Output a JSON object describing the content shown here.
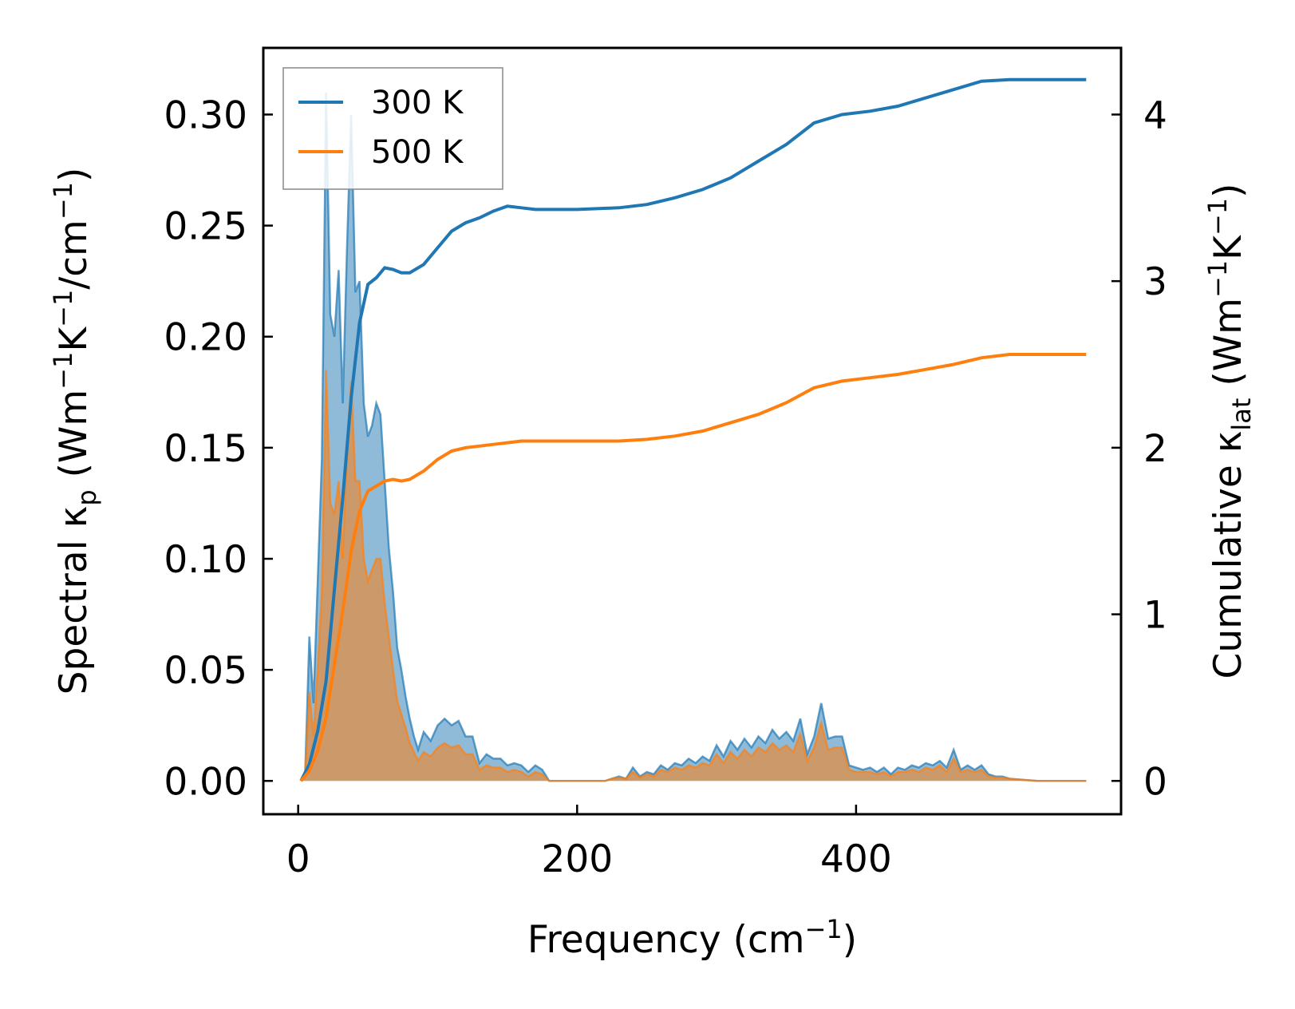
{
  "chart_data": {
    "type": "line",
    "xlabel": {
      "main": "Frequency (cm",
      "sup": "−1",
      "tail": ")"
    },
    "ylabel_left": {
      "pre": "Spectral κ",
      "sub": "p",
      "mid1": " (Wm",
      "sup1": "−1",
      "mid2": "K",
      "sup2": "−1",
      "mid3": "/cm",
      "sup3": "−1",
      "tail": ")"
    },
    "ylabel_right": {
      "pre": "Cumulative κ",
      "sub": "lat",
      "mid1": " (Wm",
      "sup1": "−1",
      "mid2": "K",
      "sup2": "−1",
      "tail": ")"
    },
    "xlim": [
      -25,
      590
    ],
    "ylim_left": [
      -0.015,
      0.33
    ],
    "ylim_right": [
      -0.2,
      4.4
    ],
    "xticks": [
      0,
      200,
      400
    ],
    "xtick_labels": [
      "0",
      "200",
      "400"
    ],
    "yticks_left": [
      0,
      0.05,
      0.1,
      0.15,
      0.2,
      0.25,
      0.3
    ],
    "ytick_labels_left": [
      "0.00",
      "0.05",
      "0.10",
      "0.15",
      "0.20",
      "0.25",
      "0.30"
    ],
    "yticks_right": [
      0,
      1,
      2,
      3,
      4
    ],
    "ytick_labels_right": [
      "0",
      "1",
      "2",
      "3",
      "4"
    ],
    "legend": {
      "position": "top-left",
      "entries": [
        "300 K",
        "500 K"
      ]
    },
    "colors": {
      "s300": "#1f77b4",
      "s500": "#ff7f0e",
      "fill300": "#1f77b4",
      "fill500": "#ff7f0e"
    },
    "series": [
      {
        "name": "300 K",
        "spectral": {
          "x": [
            2,
            5,
            8,
            11,
            14,
            17,
            20,
            23,
            26,
            29,
            32,
            35,
            38,
            41,
            44,
            47,
            50,
            53,
            56,
            59,
            62,
            65,
            68,
            71,
            74,
            77,
            80,
            83,
            86,
            90,
            95,
            100,
            105,
            110,
            115,
            120,
            125,
            130,
            135,
            140,
            145,
            150,
            155,
            160,
            165,
            170,
            175,
            180,
            190,
            200,
            210,
            220,
            225,
            230,
            235,
            240,
            245,
            250,
            255,
            260,
            265,
            270,
            275,
            280,
            285,
            290,
            295,
            300,
            305,
            310,
            315,
            320,
            325,
            330,
            335,
            340,
            345,
            350,
            355,
            360,
            365,
            370,
            375,
            380,
            385,
            390,
            395,
            400,
            405,
            410,
            415,
            420,
            425,
            430,
            435,
            440,
            445,
            450,
            455,
            460,
            465,
            470,
            475,
            480,
            485,
            490,
            495,
            500,
            505,
            510,
            520,
            530,
            540,
            550,
            565
          ],
          "y": [
            0,
            0.003,
            0.065,
            0.035,
            0.09,
            0.145,
            0.31,
            0.21,
            0.2,
            0.23,
            0.17,
            0.24,
            0.3,
            0.22,
            0.225,
            0.17,
            0.155,
            0.16,
            0.17,
            0.165,
            0.135,
            0.105,
            0.085,
            0.06,
            0.05,
            0.038,
            0.028,
            0.02,
            0.014,
            0.022,
            0.018,
            0.025,
            0.028,
            0.025,
            0.027,
            0.02,
            0.02,
            0.008,
            0.012,
            0.01,
            0.01,
            0.007,
            0.008,
            0.007,
            0.004,
            0.007,
            0.005,
            0,
            0,
            0,
            0,
            0,
            0.001,
            0.002,
            0.001,
            0.006,
            0.002,
            0.004,
            0.003,
            0.007,
            0.005,
            0.008,
            0.007,
            0.01,
            0.008,
            0.011,
            0.009,
            0.016,
            0.011,
            0.018,
            0.014,
            0.019,
            0.015,
            0.02,
            0.017,
            0.023,
            0.019,
            0.022,
            0.018,
            0.028,
            0.012,
            0.02,
            0.035,
            0.019,
            0.02,
            0.02,
            0.007,
            0.006,
            0.005,
            0.006,
            0.004,
            0.006,
            0.003,
            0.006,
            0.005,
            0.007,
            0.006,
            0.008,
            0.007,
            0.009,
            0.006,
            0.014,
            0.005,
            0.007,
            0.005,
            0.007,
            0.003,
            0.002,
            0.002,
            0.001,
            0.0005,
            0,
            0,
            0,
            0
          ]
        },
        "cumulative": {
          "x": [
            2,
            8,
            14,
            20,
            26,
            32,
            38,
            44,
            50,
            56,
            62,
            68,
            74,
            80,
            90,
            100,
            110,
            120,
            130,
            140,
            150,
            160,
            170,
            180,
            200,
            230,
            250,
            270,
            290,
            310,
            330,
            350,
            370,
            390,
            410,
            430,
            450,
            470,
            490,
            510,
            540,
            565
          ],
          "y": [
            0,
            0.1,
            0.3,
            0.6,
            1.15,
            1.7,
            2.3,
            2.75,
            2.98,
            3.02,
            3.08,
            3.07,
            3.05,
            3.05,
            3.1,
            3.2,
            3.3,
            3.35,
            3.38,
            3.42,
            3.45,
            3.44,
            3.43,
            3.43,
            3.43,
            3.44,
            3.46,
            3.5,
            3.55,
            3.62,
            3.72,
            3.82,
            3.95,
            4.0,
            4.02,
            4.05,
            4.1,
            4.15,
            4.2,
            4.21,
            4.21,
            4.21
          ]
        }
      },
      {
        "name": "500 K",
        "spectral": {
          "x": [
            2,
            5,
            8,
            11,
            14,
            17,
            20,
            23,
            26,
            29,
            32,
            35,
            38,
            41,
            44,
            47,
            50,
            53,
            56,
            59,
            62,
            65,
            68,
            71,
            74,
            77,
            80,
            83,
            86,
            90,
            95,
            100,
            105,
            110,
            115,
            120,
            125,
            130,
            135,
            140,
            145,
            150,
            155,
            160,
            165,
            170,
            175,
            180,
            190,
            200,
            210,
            220,
            225,
            230,
            235,
            240,
            245,
            250,
            255,
            260,
            265,
            270,
            275,
            280,
            285,
            290,
            295,
            300,
            305,
            310,
            315,
            320,
            325,
            330,
            335,
            340,
            345,
            350,
            355,
            360,
            365,
            370,
            375,
            380,
            385,
            390,
            395,
            400,
            405,
            410,
            415,
            420,
            425,
            430,
            435,
            440,
            445,
            450,
            455,
            460,
            465,
            470,
            475,
            480,
            485,
            490,
            495,
            500,
            505,
            510,
            520,
            530,
            540,
            550,
            565
          ],
          "y": [
            0,
            0.002,
            0.04,
            0.02,
            0.05,
            0.085,
            0.185,
            0.125,
            0.12,
            0.135,
            0.1,
            0.15,
            0.18,
            0.135,
            0.135,
            0.1,
            0.09,
            0.095,
            0.1,
            0.1,
            0.08,
            0.065,
            0.05,
            0.036,
            0.03,
            0.024,
            0.017,
            0.013,
            0.009,
            0.013,
            0.011,
            0.015,
            0.017,
            0.015,
            0.016,
            0.012,
            0.012,
            0.005,
            0.007,
            0.006,
            0.006,
            0.004,
            0.005,
            0.004,
            0.002,
            0.004,
            0.003,
            0,
            0,
            0,
            0,
            0,
            0.001,
            0.0015,
            0.001,
            0.004,
            0.0015,
            0.003,
            0.002,
            0.005,
            0.004,
            0.006,
            0.005,
            0.007,
            0.006,
            0.008,
            0.007,
            0.012,
            0.008,
            0.013,
            0.01,
            0.014,
            0.011,
            0.015,
            0.013,
            0.017,
            0.014,
            0.016,
            0.013,
            0.021,
            0.009,
            0.015,
            0.026,
            0.014,
            0.015,
            0.015,
            0.005,
            0.004,
            0.004,
            0.004,
            0.003,
            0.004,
            0.002,
            0.004,
            0.004,
            0.005,
            0.004,
            0.006,
            0.005,
            0.007,
            0.004,
            0.01,
            0.004,
            0.005,
            0.004,
            0.005,
            0.002,
            0.0015,
            0.0015,
            0.001,
            0.0004,
            0,
            0,
            0,
            0
          ]
        },
        "cumulative": {
          "x": [
            2,
            8,
            14,
            20,
            26,
            32,
            38,
            44,
            50,
            56,
            62,
            68,
            74,
            80,
            90,
            100,
            110,
            120,
            130,
            140,
            150,
            160,
            170,
            180,
            200,
            230,
            250,
            270,
            290,
            310,
            330,
            350,
            370,
            390,
            410,
            430,
            450,
            470,
            490,
            510,
            540,
            565
          ],
          "y": [
            0,
            0.06,
            0.18,
            0.38,
            0.7,
            1.02,
            1.38,
            1.62,
            1.74,
            1.77,
            1.8,
            1.81,
            1.8,
            1.81,
            1.86,
            1.93,
            1.98,
            2.0,
            2.01,
            2.02,
            2.03,
            2.04,
            2.04,
            2.04,
            2.04,
            2.04,
            2.05,
            2.07,
            2.1,
            2.15,
            2.2,
            2.27,
            2.36,
            2.4,
            2.42,
            2.44,
            2.47,
            2.5,
            2.54,
            2.56,
            2.56,
            2.56
          ]
        }
      }
    ]
  }
}
